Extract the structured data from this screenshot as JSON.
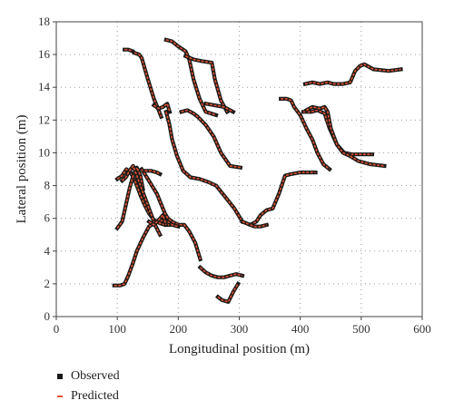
{
  "chart_data": {
    "type": "line",
    "xlabel": "Longitudinal position (m)",
    "ylabel": "Lateral position (m)",
    "xlim": [
      0,
      600
    ],
    "ylim": [
      0,
      18
    ],
    "xticks": [
      0,
      100,
      200,
      300,
      400,
      500,
      600
    ],
    "yticks": [
      0,
      2,
      4,
      6,
      8,
      10,
      12,
      14,
      16,
      18
    ],
    "grid": "dotted",
    "legend_position": "below-left",
    "colors": {
      "observed": "#1a1a1a",
      "predicted": "#e2522f"
    },
    "legend": [
      {
        "label": "Observed",
        "marker": "square",
        "series": "observed"
      },
      {
        "label": "Predicted",
        "marker": "dash",
        "series": "predicted"
      }
    ],
    "trajectories": [
      {
        "x": [
          112,
          118,
          125
        ],
        "y": [
          16.3,
          16.3,
          16.2
        ]
      },
      {
        "x": [
          128,
          136,
          140,
          150,
          160,
          168,
          172
        ],
        "y": [
          16.1,
          16.0,
          15.8,
          14.5,
          13.3,
          12.6,
          12.2
        ]
      },
      {
        "x": [
          180,
          190,
          200,
          212,
          218,
          225,
          235,
          245,
          262
        ],
        "y": [
          16.9,
          16.8,
          16.5,
          16.2,
          15.7,
          14.5,
          13.3,
          12.5,
          12.3
        ]
      },
      {
        "x": [
          212,
          225,
          238,
          255,
          260,
          270,
          280
        ],
        "y": [
          15.9,
          15.7,
          15.6,
          15.5,
          14.5,
          13.2,
          12.5
        ]
      },
      {
        "x": [
          245,
          260,
          275,
          290
        ],
        "y": [
          13.0,
          12.9,
          12.8,
          12.5
        ]
      },
      {
        "x": [
          160,
          168,
          175,
          182,
          186
        ],
        "y": [
          12.9,
          12.7,
          12.8,
          13.0,
          12.5
        ]
      },
      {
        "x": [
          140,
          150,
          165,
          178,
          183,
          190,
          200,
          210,
          218,
          228,
          236
        ],
        "y": [
          9.0,
          8.4,
          7.5,
          6.3,
          6.0,
          5.8,
          5.6,
          5.6,
          5.2,
          4.5,
          3.5
        ]
      },
      {
        "x": [
          236,
          245,
          255,
          265,
          275,
          285,
          295,
          305
        ],
        "y": [
          3.0,
          2.7,
          2.5,
          2.4,
          2.4,
          2.5,
          2.6,
          2.5
        ]
      },
      {
        "x": [
          180,
          185,
          190,
          198,
          208,
          220,
          235,
          250,
          262,
          275,
          292,
          305
        ],
        "y": [
          12.5,
          11.8,
          10.8,
          9.8,
          8.9,
          8.5,
          8.4,
          8.2,
          8.0,
          7.4,
          6.6,
          5.8
        ]
      },
      {
        "x": [
          305,
          318,
          328,
          335,
          345,
          355,
          365,
          375,
          385,
          400,
          425
        ],
        "y": [
          5.8,
          5.6,
          5.8,
          6.2,
          6.5,
          6.6,
          7.5,
          8.6,
          8.7,
          8.8,
          8.8
        ]
      },
      {
        "x": [
          318,
          325,
          335,
          345
        ],
        "y": [
          5.6,
          5.5,
          5.5,
          5.6
        ]
      },
      {
        "x": [
          205,
          215,
          225,
          232,
          245,
          258,
          270,
          285,
          302
        ],
        "y": [
          12.5,
          12.6,
          12.4,
          12.2,
          11.7,
          11.0,
          10.0,
          9.2,
          9.1
        ]
      },
      {
        "x": [
          368,
          378,
          385,
          390,
          400,
          410,
          420,
          428,
          438,
          448
        ],
        "y": [
          13.3,
          13.3,
          13.2,
          12.8,
          12.3,
          11.5,
          10.8,
          10.0,
          9.3,
          9.0
        ]
      },
      {
        "x": [
          405,
          418,
          428,
          440,
          448,
          460,
          472,
          485,
          500,
          518
        ],
        "y": [
          12.5,
          12.5,
          12.6,
          12.4,
          11.5,
          10.5,
          10.0,
          9.9,
          9.9,
          9.9
        ]
      },
      {
        "x": [
          410,
          420,
          432,
          440,
          445,
          450,
          460,
          470,
          482,
          495,
          515,
          538
        ],
        "y": [
          12.6,
          12.8,
          12.7,
          12.8,
          12.5,
          11.5,
          10.5,
          10.0,
          9.8,
          9.5,
          9.3,
          9.2
        ]
      },
      {
        "x": [
          408,
          420,
          432,
          445,
          455,
          470,
          482,
          490,
          498,
          505,
          520,
          545,
          565
        ],
        "y": [
          14.2,
          14.3,
          14.2,
          14.3,
          14.2,
          14.2,
          14.3,
          15.0,
          15.3,
          15.4,
          15.1,
          15.0,
          15.1
        ]
      },
      {
        "x": [
          95,
          105,
          112,
          118,
          125,
          132,
          142,
          152,
          165,
          178,
          190,
          200
        ],
        "y": [
          1.9,
          1.9,
          2.0,
          2.5,
          3.2,
          4.0,
          4.8,
          5.5,
          5.8,
          5.9,
          5.6,
          5.5
        ]
      },
      {
        "x": [
          100,
          108,
          115,
          122,
          130,
          138,
          145,
          152,
          160,
          170,
          178,
          185
        ],
        "y": [
          8.4,
          8.6,
          9.0,
          8.8,
          8.2,
          7.4,
          6.8,
          6.3,
          5.9,
          5.7,
          5.6,
          5.6
        ]
      },
      {
        "x": [
          100,
          108,
          114,
          120,
          126,
          132,
          138,
          142
        ],
        "y": [
          5.4,
          5.8,
          6.8,
          7.8,
          8.6,
          9.1,
          8.6,
          7.8
        ]
      },
      {
        "x": [
          108,
          114,
          120,
          126,
          132,
          140,
          148,
          156,
          162,
          170
        ],
        "y": [
          8.3,
          8.5,
          8.9,
          9.2,
          8.6,
          7.8,
          7.0,
          6.2,
          5.6,
          5.0
        ]
      },
      {
        "x": [
          145,
          155,
          165,
          170
        ],
        "y": [
          8.9,
          8.9,
          8.8,
          8.7
        ]
      },
      {
        "x": [
          152,
          160,
          168,
          175,
          180
        ],
        "y": [
          5.8,
          5.6,
          5.9,
          6.2,
          5.6
        ]
      },
      {
        "x": [
          265,
          272,
          282,
          290,
          298
        ],
        "y": [
          1.2,
          1.0,
          0.9,
          1.5,
          2.0
        ]
      }
    ]
  },
  "legend_labels": {
    "observed": "Observed",
    "predicted": "Predicted"
  }
}
